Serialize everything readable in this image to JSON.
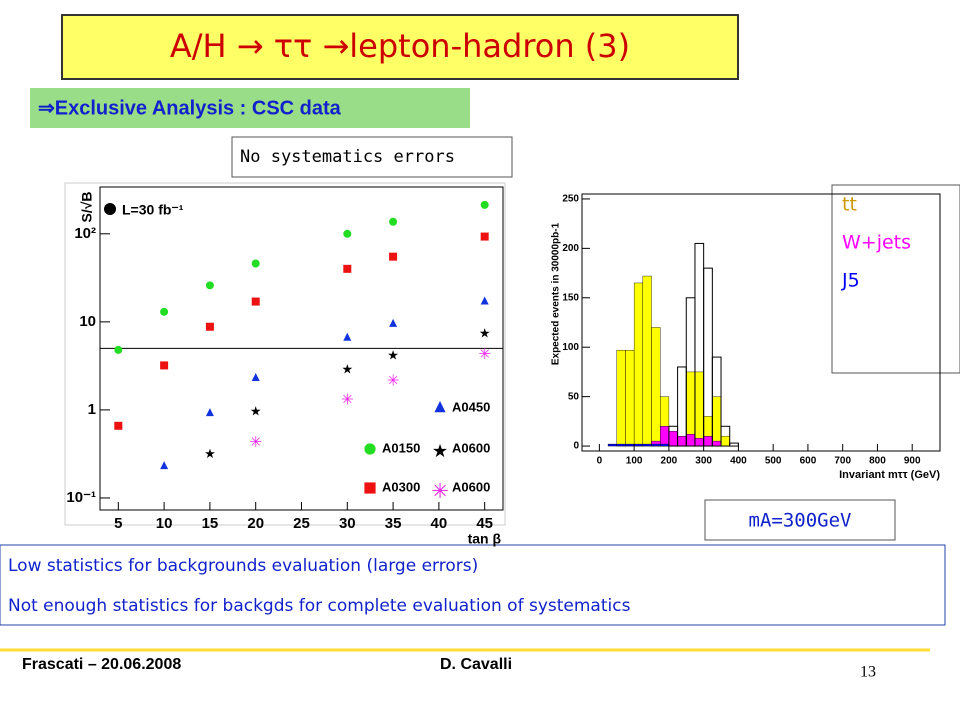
{
  "title": "A/H → ττ →lepton-hadron (3)",
  "subtitle": "⇒Exclusive Analysis : CSC data",
  "note_box": "No systematics errors",
  "mass_label": "mA=300GeV",
  "notes": [
    "Low statistics for backgrounds evaluation (large errors)",
    "Not enough statistics for backgds for complete evaluation of systematics"
  ],
  "footer": {
    "left": "Frascati – 20.06.2008",
    "author": "D. Cavalli",
    "page": "13"
  },
  "chart_data": [
    {
      "type": "scatter",
      "y_log": true,
      "ylabel": "S/√B",
      "xlabel": "tan β",
      "annotation": "L=30 fb⁻¹",
      "xlim": [
        3,
        47
      ],
      "xticks": [
        5,
        10,
        15,
        20,
        25,
        30,
        35,
        40,
        45
      ],
      "ylim": [
        0.073,
        340
      ],
      "yticks": [
        {
          "value": 0.1,
          "label": "10⁻¹"
        },
        1,
        10,
        {
          "value": 100,
          "label": "10²"
        }
      ],
      "reference_line": 5,
      "series": [
        {
          "name": "A0150",
          "color": "#22dd22",
          "marker": "circle",
          "x": [
            5,
            10,
            15,
            20,
            30,
            35,
            45
          ],
          "values": [
            4.8,
            13,
            26,
            46,
            100,
            137,
            213
          ]
        },
        {
          "name": "A0300",
          "color": "#ee1111",
          "marker": "square",
          "x": [
            5,
            10,
            15,
            20,
            30,
            35,
            45
          ],
          "values": [
            0.66,
            3.2,
            8.8,
            17,
            40,
            55,
            93
          ]
        },
        {
          "name": "A0450",
          "color": "#1133dd",
          "marker": "triangle",
          "x": [
            10,
            15,
            20,
            30,
            35,
            45
          ],
          "values": [
            0.23,
            0.92,
            2.3,
            6.6,
            9.5,
            17
          ]
        },
        {
          "name": "A0600",
          "color": "#000000",
          "marker": "star",
          "x": [
            15,
            20,
            30,
            35,
            45
          ],
          "values": [
            0.33,
            1.0,
            3.0,
            4.3,
            7.7
          ]
        },
        {
          "name": "A0600",
          "color": "#ee22ee",
          "marker": "asterisk",
          "x": [
            20,
            30,
            35,
            45
          ],
          "values": [
            0.46,
            1.4,
            2.3,
            4.6
          ]
        }
      ]
    },
    {
      "type": "histogram",
      "ylabel": "Expected events in 30000pb-1",
      "xlabel": "Invariant mττ (GeV)",
      "xlim": [
        -50,
        980
      ],
      "xticks": [
        0,
        100,
        200,
        300,
        400,
        500,
        600,
        700,
        800,
        900
      ],
      "ylim": [
        -5,
        255
      ],
      "yticks": [
        0,
        50,
        100,
        150,
        200,
        250
      ],
      "bins": [
        0,
        25,
        50,
        75,
        100,
        125,
        150,
        175,
        200,
        225,
        250,
        275,
        300,
        325,
        350,
        375,
        400,
        425,
        450,
        475,
        500
      ],
      "series": [
        {
          "name": "tt",
          "color": "#ffff00",
          "values": [
            0,
            0,
            97,
            97,
            165,
            172,
            120,
            50,
            10,
            10,
            75,
            75,
            30,
            50,
            10,
            0,
            0,
            0,
            0,
            0
          ]
        },
        {
          "name": "W+jets",
          "color": "#ff00ff",
          "values": [
            0,
            0,
            0,
            0,
            0,
            0,
            5,
            20,
            15,
            10,
            12,
            8,
            10,
            5,
            0,
            0,
            0,
            0,
            0,
            0
          ]
        },
        {
          "name": "J5",
          "color": "#0000ff",
          "values": [
            0,
            2,
            2,
            2,
            2,
            2,
            2,
            2,
            0,
            0,
            0,
            0,
            0,
            0,
            0,
            0,
            0,
            0,
            0,
            0
          ]
        },
        {
          "color": "#000000",
          "outline": true,
          "values": [
            0,
            0,
            0,
            0,
            0,
            0,
            0,
            0,
            20,
            80,
            150,
            205,
            180,
            90,
            20,
            3,
            0,
            0,
            0,
            0
          ]
        }
      ]
    }
  ]
}
